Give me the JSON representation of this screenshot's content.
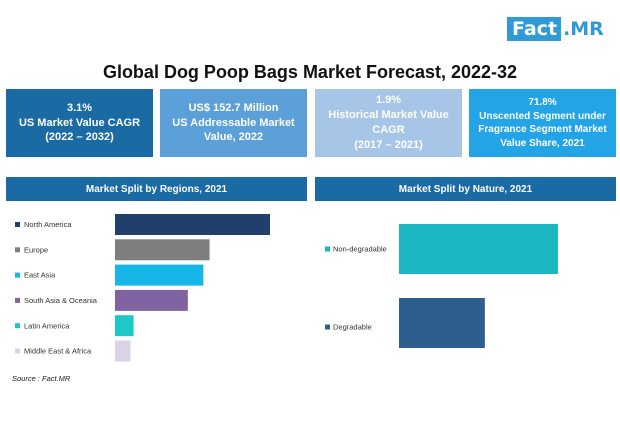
{
  "logo": {
    "fact": "Fact",
    "dot": ".",
    "mr": "MR"
  },
  "title": "Global Dog Poop Bags Market Forecast, 2022-32",
  "stats": [
    {
      "lines": [
        "3.1%",
        "US Market Value CAGR",
        "(2022 – 2032)"
      ]
    },
    {
      "lines": [
        "US$ 152.7 Million",
        "US Addressable  Market",
        "Value, 2022"
      ]
    },
    {
      "lines": [
        "1.9%",
        "Historical Market Value",
        "CAGR",
        "(2017 – 2021)"
      ]
    },
    {
      "lines": [
        "71.8%",
        "Unscented Segment under",
        "Fragrance Segment Market",
        "Value Share, 2021"
      ]
    }
  ],
  "colors": {
    "header": "#1a6aa4",
    "stat_1": "#1a6aa4",
    "stat_2": "#5ba0d8",
    "stat_3": "#a7c5e6",
    "stat_4": "#23a4e6"
  },
  "chart_data": [
    {
      "type": "bar",
      "orientation": "horizontal",
      "title": "Market Split by Regions, 2021",
      "categories": [
        "North America",
        "Europe",
        "East Asia",
        "South Asia & Oceania",
        "Latin America",
        "Middle East & Africa"
      ],
      "values": [
        100,
        61,
        57,
        47,
        12,
        10
      ],
      "colors": [
        "#213f6b",
        "#7f7f7f",
        "#17b6e8",
        "#8064a2",
        "#1ec8c8",
        "#d9d3e8"
      ],
      "xlim": [
        0,
        100
      ],
      "grid": false,
      "legend": "none"
    },
    {
      "type": "bar",
      "orientation": "vertical",
      "title": "Market Split by Nature, 2021",
      "categories": [
        "Non-degradable",
        "Degradable"
      ],
      "values": [
        100,
        54
      ],
      "colors": [
        "#1bb6c2",
        "#2e5e8e"
      ],
      "ylim": [
        0,
        100
      ],
      "grid": false,
      "legend": "none"
    }
  ],
  "source": "Source : Fact.MR"
}
